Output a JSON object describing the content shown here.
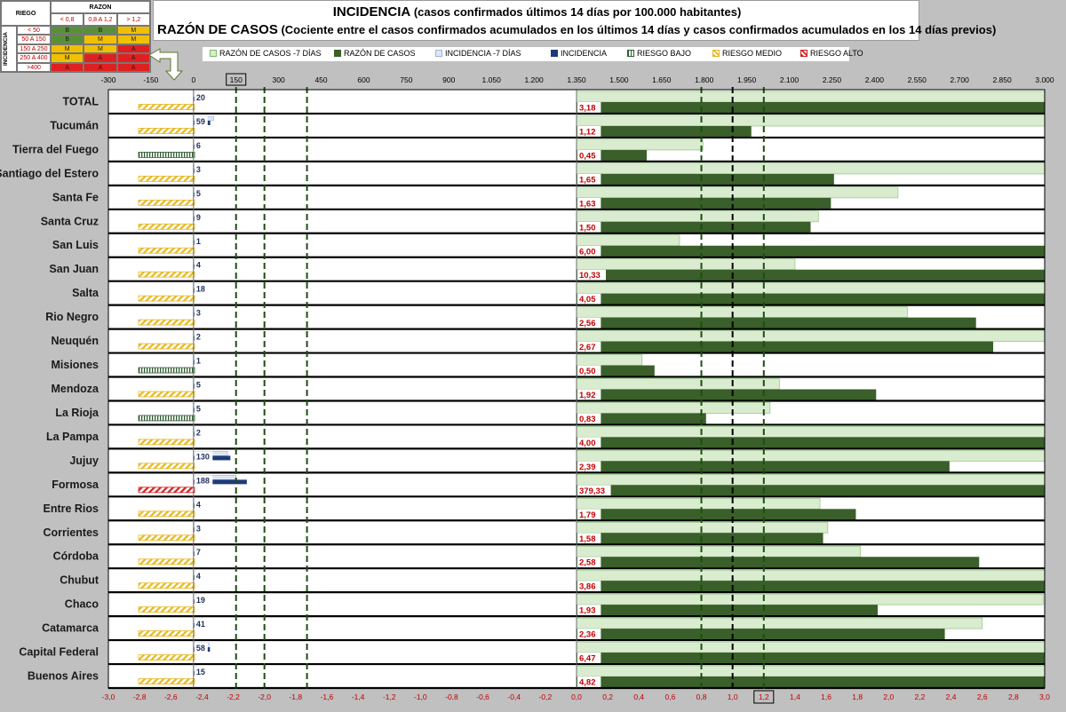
{
  "title": {
    "line1_main": "INCIDENCIA",
    "line1_sub": " (casos confirmados últimos 14 días por 100.000 habitantes)",
    "line2_main": "RAZÓN DE CASOS",
    "line2_sub": " (Cociente entre el casos confirmados acumulados en los últimos 14 días y casos confirmados acumulados en los 14 días previos)"
  },
  "risk_table": {
    "corner": "RIEGO",
    "razon_header": "RAZON",
    "razon_cols": [
      "< 0,8",
      "0,8 A 1,2",
      "> 1,2"
    ],
    "incidencia_label": "INCIDENCIA",
    "rows": [
      {
        "range": "< 50",
        "cells": [
          "B",
          "B",
          "M"
        ]
      },
      {
        "range": "50 A 150",
        "cells": [
          "B",
          "M",
          "M"
        ]
      },
      {
        "range": "150 A 250",
        "cells": [
          "M",
          "M",
          "A"
        ]
      },
      {
        "range": "250 A 400",
        "cells": [
          "M",
          "A",
          "A"
        ]
      },
      {
        "range": ">400",
        "cells": [
          "A",
          "A",
          "A"
        ]
      }
    ],
    "colors": {
      "B": "#5a8f3a",
      "M": "#f0c000",
      "A": "#e02020"
    }
  },
  "legend": [
    {
      "label": "RAZÓN DE CASOS -7 DÍAS",
      "icon": "light-green-box"
    },
    {
      "label": "RAZÓN DE CASOS",
      "icon": "dark-green-box"
    },
    {
      "label": "INCIDENCIA -7 DÍAS",
      "icon": "light-blue-box"
    },
    {
      "label": "INCIDENCIA",
      "icon": "navy-box"
    },
    {
      "label": "RIESGO BAJO",
      "icon": "vertical-hatch-green"
    },
    {
      "label": "RIESGO MEDIO",
      "icon": "diagonal-hatch-yellow"
    },
    {
      "label": "RIESGO ALTO",
      "icon": "diagonal-hatch-red"
    }
  ],
  "chart_data": {
    "type": "bar",
    "categories": [
      "TOTAL",
      "Tucumán",
      "Tierra del Fuego",
      "Santiago del Estero",
      "Santa Fe",
      "Santa Cruz",
      "San Luis",
      "San Juan",
      "Salta",
      "Rio Negro",
      "Neuquén",
      "Misiones",
      "Mendoza",
      "La Rioja",
      "La Pampa",
      "Jujuy",
      "Formosa",
      "Entre Rios",
      "Corrientes",
      "Córdoba",
      "Chubut",
      "Chaco",
      "Catamarca",
      "Capital Federal",
      "Buenos Aires"
    ],
    "incidencia": [
      20,
      59,
      6,
      3,
      5,
      9,
      1,
      4,
      18,
      3,
      2,
      1,
      5,
      5,
      2,
      130,
      188,
      4,
      3,
      7,
      4,
      19,
      41,
      58,
      15
    ],
    "incidencia_prev": [
      18,
      72,
      5,
      3,
      5,
      8,
      1,
      4,
      16,
      3,
      2,
      1,
      5,
      5,
      2,
      120,
      150,
      4,
      3,
      7,
      4,
      17,
      38,
      55,
      14
    ],
    "riesgo": [
      "M",
      "M",
      "B",
      "M",
      "M",
      "M",
      "M",
      "M",
      "M",
      "M",
      "M",
      "B",
      "M",
      "B",
      "M",
      "M",
      "A",
      "M",
      "M",
      "M",
      "M",
      "M",
      "M",
      "M",
      "M"
    ],
    "razon": [
      3.18,
      1.12,
      0.45,
      1.65,
      1.63,
      1.5,
      6.0,
      10.33,
      4.05,
      2.56,
      2.67,
      0.5,
      1.92,
      0.83,
      4.0,
      2.39,
      379.33,
      1.79,
      1.58,
      2.58,
      3.86,
      1.93,
      2.36,
      6.47,
      4.82
    ],
    "razon_labels": [
      "3,18",
      "1,12",
      "0,45",
      "1,65",
      "1,63",
      "1,50",
      "6,00",
      "10,33",
      "4,05",
      "2,56",
      "2,67",
      "0,50",
      "1,92",
      "0,83",
      "4,00",
      "2,39",
      "379,33",
      "1,79",
      "1,58",
      "2,58",
      "3,86",
      "1,93",
      "2,36",
      "6,47",
      "4,82"
    ],
    "razon_prev": [
      3.0,
      3.0,
      0.81,
      3.0,
      2.06,
      1.55,
      0.66,
      1.4,
      3.0,
      2.12,
      3.0,
      0.42,
      1.3,
      1.24,
      3.0,
      3.0,
      3.0,
      1.56,
      1.61,
      1.82,
      3.0,
      2.99,
      2.6,
      3.0,
      3.0
    ],
    "incidencia_axis_ticks": [
      "-300",
      "-150",
      "0",
      "150",
      "300",
      "450",
      "600",
      "750",
      "900",
      "1.050",
      "1.200",
      "1.350",
      "1.500",
      "1.650",
      "1.800",
      "1.950",
      "2.100",
      "2.250",
      "2.400",
      "2.550",
      "2.700",
      "2.850",
      "3.000"
    ],
    "razon_axis_ticks": [
      "-3,0",
      "-2,8",
      "-2,6",
      "-2,4",
      "-2,2",
      "-2,0",
      "-1,8",
      "-1,6",
      "-1,4",
      "-1,2",
      "-1,0",
      "-0,8",
      "-0,6",
      "-0,4",
      "-0,2",
      "0,0",
      "0,2",
      "0,4",
      "0,6",
      "0,8",
      "1,0",
      "1,2",
      "1,4",
      "1,6",
      "1,8",
      "2,0",
      "2,2",
      "2,4",
      "2,6",
      "2,8",
      "3,0"
    ],
    "incidencia_range": [
      -300,
      3000
    ],
    "razon_range": [
      -3.0,
      3.0
    ],
    "incidencia_thresholds": [
      150,
      250,
      400
    ],
    "razon_thresholds": [
      0.8,
      1.0,
      1.2
    ],
    "highlight_top_tick": "150",
    "highlight_bottom_tick": "1,2",
    "colors": {
      "razon": "#3a5f2a",
      "razon_prev": "#d9ecd0",
      "incidencia": "#1f3a7a",
      "incidencia_prev": "#dde6f5",
      "threshold": "#1e4d12",
      "risk_B": "#2f5f2f",
      "risk_M": "#e8b820",
      "risk_A": "#d42020"
    },
    "legend_position": "top",
    "grid": false
  }
}
